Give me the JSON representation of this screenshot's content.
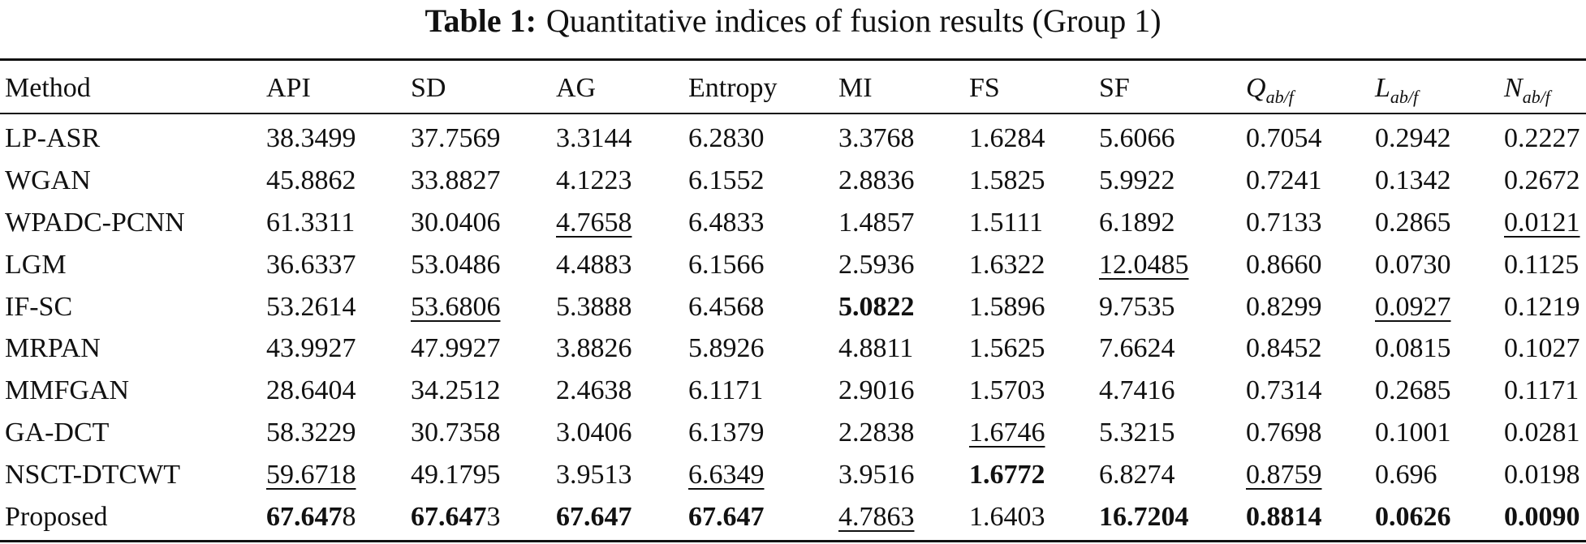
{
  "title": {
    "label": "Table 1:",
    "text": "Quantitative indices of fusion results (Group 1)"
  },
  "table": {
    "header": [
      "Method",
      "API",
      "SD",
      "AG",
      "Entropy",
      "MI",
      "FS",
      "SF",
      {
        "main": "Q",
        "sub": "ab/f"
      },
      {
        "main": "L",
        "sub": "ab/f"
      },
      {
        "main": "N",
        "sub": "ab/f"
      }
    ],
    "rows": [
      [
        "LP-ASR",
        "38.3499",
        "37.7569",
        "3.3144",
        "6.2830",
        "3.3768",
        "1.6284",
        "5.6066",
        "0.7054",
        "0.2942",
        "0.2227"
      ],
      [
        "WGAN",
        "45.8862",
        "33.8827",
        "4.1223",
        "6.1552",
        "2.8836",
        "1.5825",
        "5.9922",
        "0.7241",
        "0.1342",
        "0.2672"
      ],
      [
        "WPADC-PCNN",
        "61.3311",
        "30.0406",
        {
          "text": "4.7658",
          "style": "underline"
        },
        "6.4833",
        "1.4857",
        "1.5111",
        "6.1892",
        "0.7133",
        "0.2865",
        {
          "text": "0.0121",
          "style": "underline"
        }
      ],
      [
        "LGM",
        "36.6337",
        "53.0486",
        "4.4883",
        "6.1566",
        "2.5936",
        "1.6322",
        {
          "text": "12.0485",
          "style": "underline"
        },
        "0.8660",
        "0.0730",
        "0.1125"
      ],
      [
        "IF-SC",
        "53.2614",
        {
          "text": "53.6806",
          "style": "underline"
        },
        "5.3888",
        "6.4568",
        {
          "text": "5.0822",
          "style": "bold"
        },
        "1.5896",
        "9.7535",
        "0.8299",
        {
          "text": "0.0927",
          "style": "underline"
        },
        "0.1219"
      ],
      [
        "MRPAN",
        "43.9927",
        "47.9927",
        "3.8826",
        "5.8926",
        "4.8811",
        "1.5625",
        "7.6624",
        "0.8452",
        "0.0815",
        "0.1027"
      ],
      [
        "MMFGAN",
        "28.6404",
        "34.2512",
        "2.4638",
        "6.1171",
        "2.9016",
        "1.5703",
        "4.7416",
        "0.7314",
        "0.2685",
        "0.1171"
      ],
      [
        "GA-DCT",
        "58.3229",
        "30.7358",
        "3.0406",
        "6.1379",
        "2.2838",
        {
          "text": "1.6746",
          "style": "underline"
        },
        "5.3215",
        "0.7698",
        "0.1001",
        "0.0281"
      ],
      [
        "NSCT-DTCWT",
        {
          "text": "59.6718",
          "style": "underline"
        },
        "49.1795",
        "3.9513",
        {
          "text": "6.6349",
          "style": "underline"
        },
        "3.9516",
        {
          "text": "1.6772",
          "style": "bold"
        },
        "6.8274",
        {
          "text": "0.8759",
          "style": "underline"
        },
        "0.696",
        "0.0198"
      ],
      [
        "Proposed",
        {
          "bold": "67.647",
          "text": "8"
        },
        {
          "bold": "67.647",
          "text": "3"
        },
        {
          "text": "67.647",
          "style": "bold"
        },
        {
          "text": "67.647",
          "style": "bold"
        },
        {
          "text": "4.7863",
          "style": "underline"
        },
        "1.6403",
        {
          "text": "16.7204",
          "style": "bold"
        },
        {
          "text": "0.8814",
          "style": "bold"
        },
        {
          "text": "0.0626",
          "style": "bold"
        },
        {
          "text": "0.0090",
          "style": "bold"
        }
      ]
    ]
  }
}
